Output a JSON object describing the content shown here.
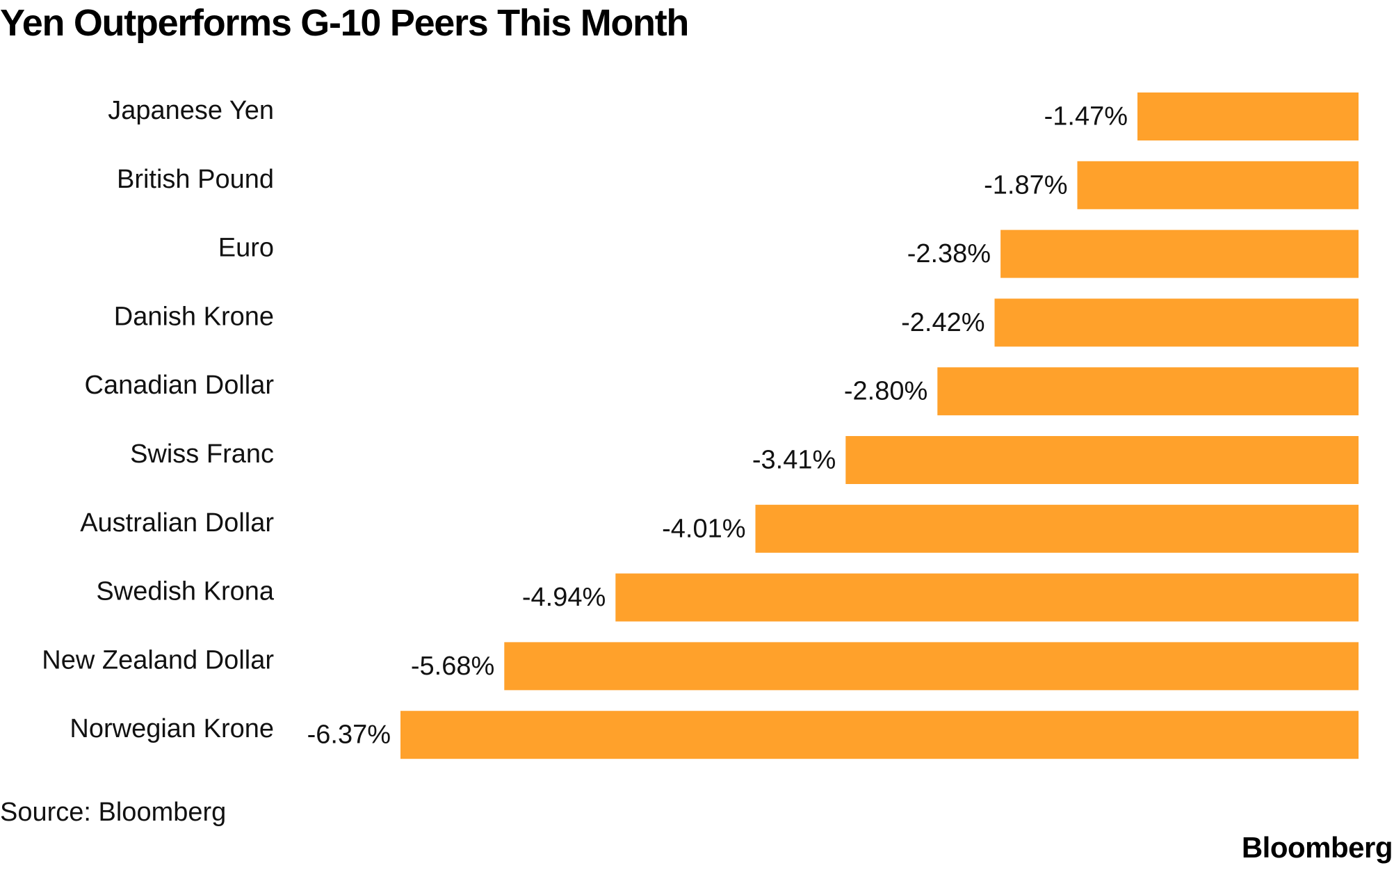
{
  "title": "Yen Outperforms G-10 Peers This Month",
  "source": "Source: Bloomberg",
  "brand": "Bloomberg",
  "colors": {
    "bar": "#FFA12B",
    "text": "#111111"
  },
  "chart_data": {
    "type": "bar",
    "orientation": "horizontal",
    "title": "Yen Outperforms G-10 Peers This Month",
    "xlabel": "",
    "ylabel": "",
    "categories": [
      "Japanese Yen",
      "British Pound",
      "Euro",
      "Danish Krone",
      "Canadian Dollar",
      "Swiss Franc",
      "Australian Dollar",
      "Swedish Krona",
      "New Zealand Dollar",
      "Norwegian Krone"
    ],
    "values": [
      -1.47,
      -1.87,
      -2.38,
      -2.42,
      -2.8,
      -3.41,
      -4.01,
      -4.94,
      -5.68,
      -6.37
    ],
    "data_labels": [
      "-1.47%",
      "-1.87%",
      "-2.38%",
      "-2.42%",
      "-2.80%",
      "-3.41%",
      "-4.01%",
      "-4.94%",
      "-5.68%",
      "-6.37%"
    ],
    "xlim": [
      -6.37,
      0
    ],
    "grid": false,
    "legend": "none"
  }
}
